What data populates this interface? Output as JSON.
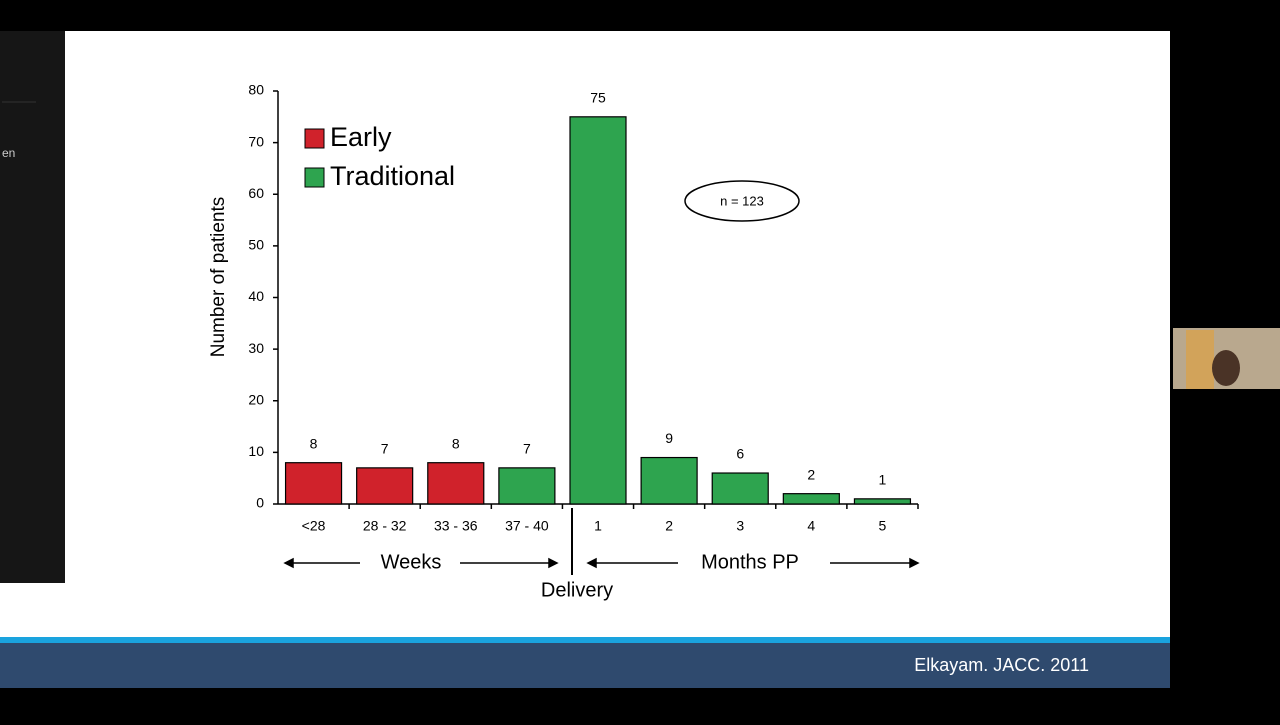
{
  "chart_data": {
    "type": "bar",
    "y_axis_label": "Number of patients",
    "categories": [
      "<28",
      "28 - 32",
      "33 - 36",
      "37 - 40",
      "1",
      "2",
      "3",
      "4",
      "5"
    ],
    "series": [
      {
        "name": "Early",
        "color": "#d0222b",
        "values": [
          8,
          7,
          8,
          null,
          null,
          null,
          null,
          null,
          null
        ]
      },
      {
        "name": "Traditional",
        "color": "#2ea44f",
        "values": [
          null,
          null,
          null,
          7,
          75,
          9,
          6,
          2,
          1
        ]
      }
    ],
    "ylim": [
      0,
      80
    ],
    "yticks": [
      0,
      10,
      20,
      30,
      40,
      50,
      60,
      70,
      80
    ],
    "annotations": {
      "sample": "n = 123",
      "weeks": "Weeks",
      "months": "Months PP",
      "delivery": "Delivery"
    }
  },
  "slide": {
    "footer": "Elkayam. JACC. 2011",
    "sidebar_text": "en"
  }
}
